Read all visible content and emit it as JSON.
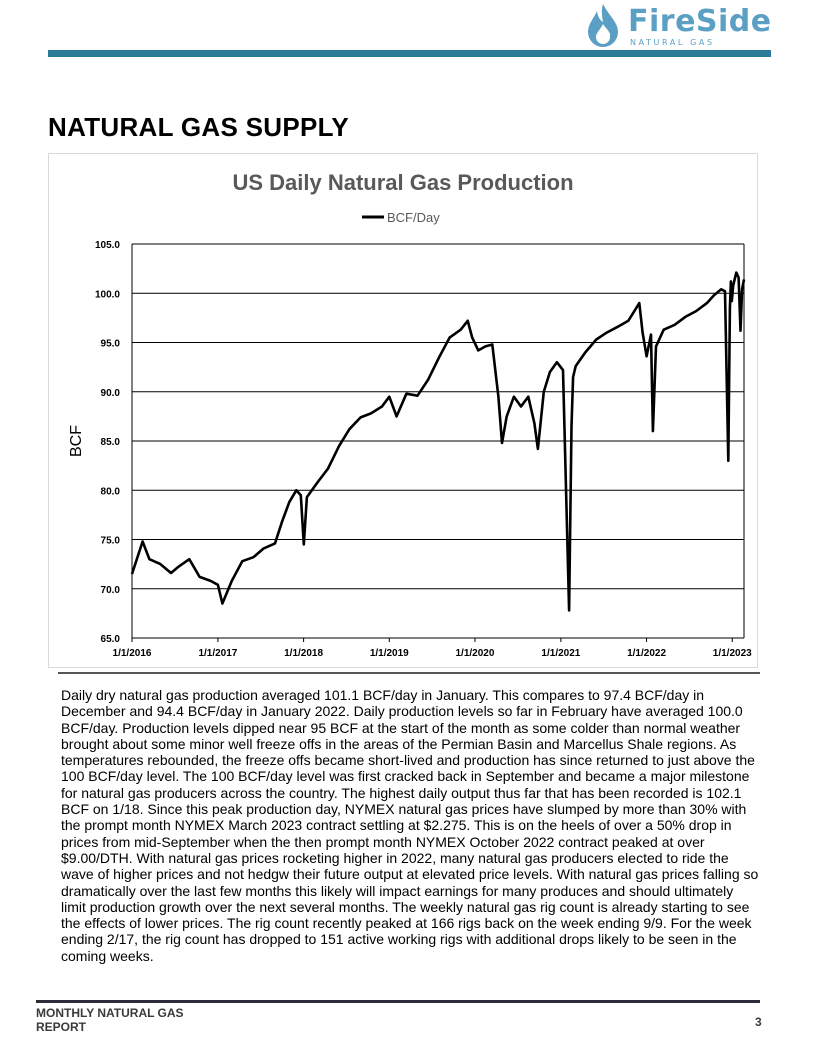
{
  "header": {
    "logo": {
      "name": "FireSide",
      "subtitle": "NATURAL GAS",
      "icon": "flame-droplet-icon",
      "color": "#5b9fc5"
    },
    "rule_color": "#2a7a9a"
  },
  "section_title": "NATURAL GAS SUPPLY",
  "chart_data": {
    "type": "line",
    "title": "US Daily Natural Gas Production",
    "xlabel": "",
    "ylabel": "BCF",
    "legend": {
      "position": "top-center",
      "entries": [
        "BCF/Day"
      ]
    },
    "ylim": [
      65.0,
      105.0
    ],
    "yticks": [
      "65.0",
      "70.0",
      "75.0",
      "80.0",
      "85.0",
      "90.0",
      "95.0",
      "100.0",
      "105.0"
    ],
    "xticks": [
      "1/1/2016",
      "1/1/2017",
      "1/1/2018",
      "1/1/2019",
      "1/1/2020",
      "1/1/2021",
      "1/1/2022",
      "1/1/2023"
    ],
    "xlim": [
      "2016-01-01",
      "2023-02-20"
    ],
    "grid": true,
    "line_color": "#000000",
    "series": [
      {
        "name": "BCF/Day",
        "x": [
          "2016-01-01",
          "2016-02-15",
          "2016-03-15",
          "2016-05-01",
          "2016-06-15",
          "2016-07-15",
          "2016-09-01",
          "2016-10-15",
          "2016-12-01",
          "2017-01-01",
          "2017-01-20",
          "2017-03-01",
          "2017-04-15",
          "2017-06-01",
          "2017-07-15",
          "2017-09-01",
          "2017-10-01",
          "2017-11-01",
          "2017-12-01",
          "2017-12-20",
          "2018-01-02",
          "2018-01-15",
          "2018-03-01",
          "2018-04-15",
          "2018-06-01",
          "2018-07-15",
          "2018-09-01",
          "2018-10-15",
          "2018-12-01",
          "2019-01-01",
          "2019-02-01",
          "2019-03-15",
          "2019-05-01",
          "2019-06-15",
          "2019-08-01",
          "2019-09-15",
          "2019-11-01",
          "2019-12-01",
          "2019-12-20",
          "2020-01-15",
          "2020-02-15",
          "2020-03-15",
          "2020-04-10",
          "2020-04-25",
          "2020-05-15",
          "2020-06-15",
          "2020-07-15",
          "2020-08-15",
          "2020-09-10",
          "2020-09-25",
          "2020-10-20",
          "2020-11-15",
          "2020-12-15",
          "2021-01-10",
          "2021-02-05",
          "2021-02-15",
          "2021-02-22",
          "2021-03-05",
          "2021-04-15",
          "2021-06-01",
          "2021-07-15",
          "2021-09-01",
          "2021-10-15",
          "2021-12-01",
          "2021-12-15",
          "2022-01-01",
          "2022-01-20",
          "2022-01-28",
          "2022-02-10",
          "2022-03-15",
          "2022-05-01",
          "2022-06-15",
          "2022-08-01",
          "2022-09-15",
          "2022-10-15",
          "2022-11-15",
          "2022-12-01",
          "2022-12-15",
          "2022-12-22",
          "2022-12-26",
          "2022-12-30",
          "2023-01-05",
          "2023-01-18",
          "2023-01-28",
          "2023-02-05",
          "2023-02-12",
          "2023-02-20"
        ],
        "values": [
          71.5,
          74.8,
          73.0,
          72.5,
          71.6,
          72.2,
          73.0,
          71.2,
          70.8,
          70.4,
          68.5,
          70.8,
          72.8,
          73.2,
          74.1,
          74.6,
          76.8,
          78.8,
          80.0,
          79.5,
          74.5,
          79.3,
          80.8,
          82.2,
          84.5,
          86.2,
          87.4,
          87.8,
          88.5,
          89.5,
          87.5,
          89.8,
          89.6,
          91.2,
          93.5,
          95.5,
          96.3,
          97.2,
          95.5,
          94.2,
          94.6,
          94.8,
          89.5,
          84.8,
          87.5,
          89.5,
          88.5,
          89.5,
          86.8,
          84.2,
          90.0,
          92.0,
          93.0,
          92.2,
          67.8,
          86.5,
          91.5,
          92.6,
          94.0,
          95.3,
          96.0,
          96.6,
          97.2,
          99.0,
          96.0,
          93.6,
          95.8,
          86.0,
          94.6,
          96.3,
          96.8,
          97.6,
          98.2,
          99.0,
          99.8,
          100.4,
          100.2,
          83.0,
          98.5,
          101.2,
          99.2,
          100.8,
          102.1,
          101.6,
          96.2,
          100.4,
          101.4
        ]
      }
    ]
  },
  "body_text": "Daily dry natural gas production averaged 101.1 BCF/day in January.  This compares to 97.4 BCF/day in December and 94.4 BCF/day in January 2022.  Daily production levels so far in February have averaged 100.0 BCF/day.  Production levels dipped near 95 BCF at the start of the month as some colder than normal weather brought about some minor well freeze offs in the areas of the Permian Basin and Marcellus Shale regions.  As temperatures rebounded, the freeze offs became short-lived and production has since returned to just above the 100 BCF/day level.  The 100 BCF/day level was first cracked back in September and became a major milestone for natural gas producers across the country.  The highest daily output thus far that has been recorded is 102.1 BCF on 1/18.  Since this peak production day, NYMEX natural gas prices have slumped by more than 30% with the prompt month NYMEX March 2023 contract settling at $2.275.  This is on the heels of over a 50% drop in prices from mid-September when the then prompt month NYMEX October 2022 contract peaked at over $9.00/DTH.  With natural gas prices rocketing higher in 2022, many natural gas producers elected to ride the wave of higher prices and not hedgw their future output at elevated price levels.  With natural gas prices falling so dramatically over the last few months this likely will impact earnings for many produces and should ultimately limit production growth over the next several months.  The weekly natural gas rig count is already starting to see the effects of lower prices. The rig count recently peaked at 166 rigs back on the week ending 9/9.  For the week ending 2/17, the rig count has dropped to 151 active working rigs with additional drops likely to be seen in the coming weeks.",
  "footer": {
    "title": "MONTHLY NATURAL GAS REPORT",
    "page_number": "3"
  }
}
